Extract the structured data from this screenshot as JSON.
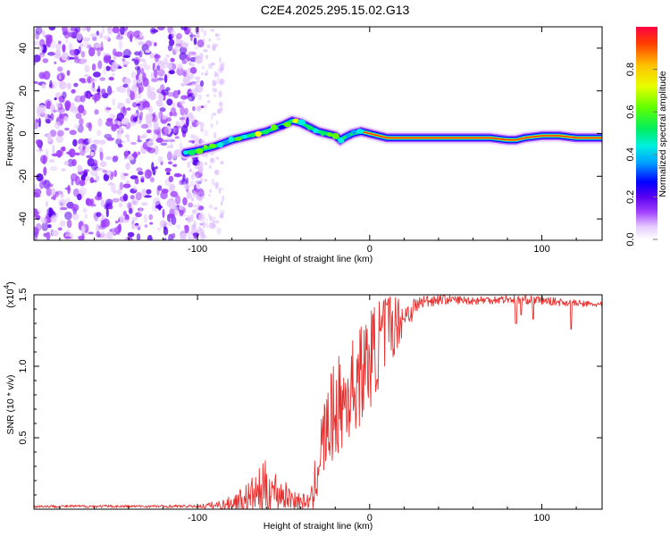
{
  "title": "C2E4.2025.295.15.02.G13",
  "chart_data": [
    {
      "type": "heatmap",
      "name": "spectrogram",
      "xlabel": "Height of straight line (km)",
      "ylabel": "Frequency (Hz)",
      "xlim": [
        -195,
        135
      ],
      "ylim": [
        -50,
        50
      ],
      "xticks": [
        -100,
        0,
        100
      ],
      "xtick_labels": [
        "-100",
        "0",
        "100"
      ],
      "yticks": [
        -40,
        -20,
        0,
        20,
        40
      ],
      "ytick_labels": [
        "-40",
        "-20",
        "0",
        "20",
        "40"
      ],
      "noise_region_km": [
        -195,
        -105
      ],
      "ridge": {
        "x": [
          -107,
          -100,
          -90,
          -80,
          -70,
          -60,
          -50,
          -45,
          -40,
          -35,
          -30,
          -25,
          -20,
          -17,
          -15,
          -10,
          -5,
          0,
          10,
          30,
          50,
          70,
          80,
          85,
          90,
          100,
          110,
          120,
          135
        ],
        "y": [
          -9,
          -8,
          -6,
          -3,
          -1,
          1,
          4,
          6,
          5,
          3,
          1,
          0,
          -1,
          -3,
          -2,
          0,
          1,
          0,
          -2,
          -2,
          -2,
          -2,
          -3,
          -3,
          -2,
          -1,
          -1,
          -2,
          -2
        ]
      },
      "colorbar": {
        "label": "Normalized spectral amplitude",
        "range": [
          0,
          1
        ],
        "ticks": [
          0.0,
          0.2,
          0.4,
          0.6,
          0.8
        ],
        "tick_labels": [
          "0.0",
          "0.2",
          "0.4",
          "0.6",
          "0.8"
        ]
      }
    },
    {
      "type": "line",
      "name": "snr",
      "xlabel": "Height of straight line (km)",
      "ylabel": "SNR (10 * v/v)",
      "scale_label": "(x10",
      "scale_exponent": "4",
      "xlim": [
        -195,
        135
      ],
      "ylim": [
        0,
        1.5
      ],
      "xticks": [
        -100,
        0,
        100
      ],
      "xtick_labels": [
        "-100",
        "0",
        "100"
      ],
      "yticks": [
        0.5,
        1.0,
        1.5
      ],
      "ytick_labels": [
        "0.5",
        "1.0",
        "1.5"
      ],
      "color": "#e8312f",
      "envelope": {
        "x": [
          -195,
          -100,
          -85,
          -70,
          -60,
          -50,
          -40,
          -33,
          -30,
          -25,
          -20,
          -15,
          -10,
          -5,
          0,
          5,
          10,
          15,
          20,
          30,
          40,
          60,
          80,
          100,
          110,
          120,
          135
        ],
        "y": [
          0.02,
          0.02,
          0.03,
          0.08,
          0.15,
          0.1,
          0.05,
          0.06,
          0.35,
          0.55,
          0.7,
          0.75,
          0.85,
          0.95,
          1.05,
          1.15,
          1.25,
          1.3,
          1.35,
          1.45,
          1.47,
          1.46,
          1.47,
          1.46,
          1.45,
          1.44,
          1.43
        ]
      },
      "noise": {
        "x": [
          -195,
          -100,
          -80,
          -70,
          -60,
          -50,
          -40,
          -35,
          -30,
          -20,
          -10,
          0,
          10,
          20,
          30,
          50,
          100,
          135
        ],
        "y": [
          0.01,
          0.01,
          0.05,
          0.12,
          0.2,
          0.1,
          0.06,
          0.05,
          0.25,
          0.35,
          0.35,
          0.35,
          0.3,
          0.12,
          0.05,
          0.03,
          0.03,
          0.02
        ]
      },
      "dips": [
        [
          85,
          1.3
        ],
        [
          95,
          1.33
        ],
        [
          117,
          1.26
        ],
        [
          88,
          1.36
        ]
      ]
    }
  ]
}
